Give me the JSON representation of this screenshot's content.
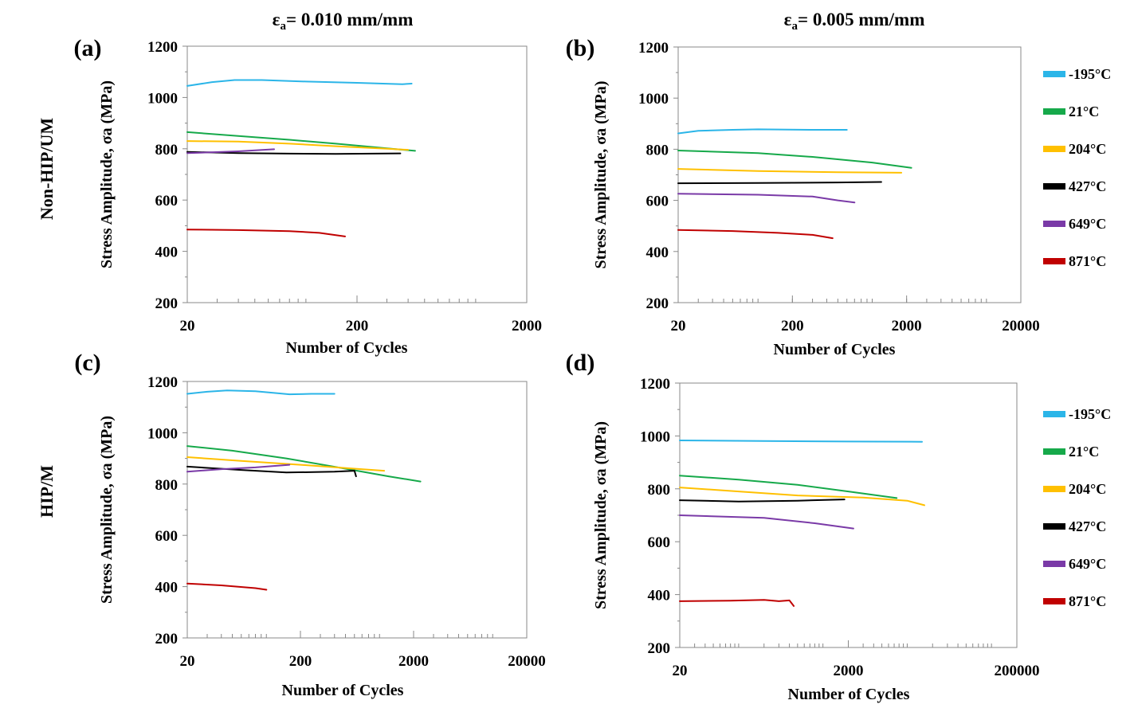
{
  "column_labels": [
    {
      "main": "ε",
      "sub": "a",
      "rest": "= 0.010 mm/mm"
    },
    {
      "main": "ε",
      "sub": "a",
      "rest": "= 0.005 mm/mm"
    }
  ],
  "row_labels": [
    "Non-HIP/UM",
    "HIP/M"
  ],
  "legend_items": [
    {
      "label": "-195°C",
      "color": "#2bb5e8"
    },
    {
      "label": " 21°C",
      "color": "#16a94a"
    },
    {
      "label": "204°C",
      "color": "#ffc000"
    },
    {
      "label": "427°C",
      "color": "#000000"
    },
    {
      "label": "649°C",
      "color": "#7a3aa7"
    },
    {
      "label": "871°C",
      "color": "#c00000"
    }
  ],
  "chart_data": [
    {
      "panel": "(a)",
      "type": "line",
      "xlabel": "Number of Cycles",
      "ylabel": "Stress Amplitude,  σa (MPa)",
      "xscale": "log",
      "xlim": [
        20,
        2000
      ],
      "xticks": [
        20,
        200,
        2000
      ],
      "ylim": [
        200,
        1200
      ],
      "yticks": [
        200,
        400,
        600,
        800,
        1000,
        1200
      ],
      "grid": false,
      "series": [
        {
          "name": "-195°C",
          "color": "#2bb5e8",
          "points": [
            [
              20,
              1045
            ],
            [
              28,
              1060
            ],
            [
              38,
              1068
            ],
            [
              55,
              1068
            ],
            [
              100,
              1062
            ],
            [
              200,
              1057
            ],
            [
              370,
              1052
            ],
            [
              420,
              1054
            ]
          ]
        },
        {
          "name": " 21°C",
          "color": "#16a94a",
          "points": [
            [
              20,
              865
            ],
            [
              40,
              850
            ],
            [
              80,
              835
            ],
            [
              150,
              820
            ],
            [
              300,
              802
            ],
            [
              440,
              792
            ]
          ]
        },
        {
          "name": "204°C",
          "color": "#ffc000",
          "points": [
            [
              20,
              830
            ],
            [
              40,
              828
            ],
            [
              80,
              820
            ],
            [
              150,
              810
            ],
            [
              300,
              800
            ],
            [
              400,
              796
            ]
          ]
        },
        {
          "name": "427°C",
          "color": "#000000",
          "points": [
            [
              20,
              788
            ],
            [
              40,
              783
            ],
            [
              80,
              781
            ],
            [
              150,
              780
            ],
            [
              250,
              781
            ],
            [
              360,
              782
            ]
          ]
        },
        {
          "name": "649°C",
          "color": "#7a3aa7",
          "points": [
            [
              20,
              783
            ],
            [
              40,
              790
            ],
            [
              65,
              798
            ]
          ]
        },
        {
          "name": "871°C",
          "color": "#c00000",
          "points": [
            [
              20,
              485
            ],
            [
              40,
              483
            ],
            [
              80,
              479
            ],
            [
              120,
              472
            ],
            [
              170,
              458
            ]
          ]
        }
      ]
    },
    {
      "panel": "(b)",
      "type": "line",
      "xlabel": "Number of Cycles",
      "ylabel": "Stress Amplitude,  σa (MPa)",
      "xscale": "log",
      "xlim": [
        20,
        20000
      ],
      "xticks": [
        20,
        200,
        2000,
        20000
      ],
      "ylim": [
        200,
        1200
      ],
      "yticks": [
        200,
        400,
        600,
        800,
        1000,
        1200
      ],
      "grid": false,
      "series": [
        {
          "name": "-195°C",
          "color": "#2bb5e8",
          "points": [
            [
              20,
              862
            ],
            [
              30,
              872
            ],
            [
              60,
              876
            ],
            [
              100,
              878
            ],
            [
              300,
              876
            ],
            [
              600,
              876
            ]
          ]
        },
        {
          "name": " 21°C",
          "color": "#16a94a",
          "points": [
            [
              20,
              795
            ],
            [
              100,
              785
            ],
            [
              300,
              770
            ],
            [
              1000,
              748
            ],
            [
              2200,
              727
            ]
          ]
        },
        {
          "name": "204°C",
          "color": "#ffc000",
          "points": [
            [
              20,
              723
            ],
            [
              100,
              715
            ],
            [
              500,
              710
            ],
            [
              1800,
              708
            ]
          ]
        },
        {
          "name": "427°C",
          "color": "#000000",
          "points": [
            [
              20,
              667
            ],
            [
              100,
              668
            ],
            [
              500,
              670
            ],
            [
              1200,
              672
            ]
          ]
        },
        {
          "name": "649°C",
          "color": "#7a3aa7",
          "points": [
            [
              20,
              626
            ],
            [
              100,
              622
            ],
            [
              300,
              615
            ],
            [
              500,
              600
            ],
            [
              700,
              592
            ]
          ]
        },
        {
          "name": "871°C",
          "color": "#c00000",
          "points": [
            [
              20,
              484
            ],
            [
              60,
              480
            ],
            [
              150,
              473
            ],
            [
              300,
              465
            ],
            [
              450,
              452
            ]
          ]
        }
      ]
    },
    {
      "panel": "(c)",
      "type": "line",
      "xlabel": "Number of Cycles",
      "ylabel": "Stress Amplitude,  σa (MPa)",
      "xscale": "log",
      "xlim": [
        20,
        20000
      ],
      "xticks": [
        20,
        200,
        2000,
        20000
      ],
      "ylim": [
        200,
        1200
      ],
      "yticks": [
        200,
        400,
        600,
        800,
        1000,
        1200
      ],
      "grid": false,
      "series": [
        {
          "name": "-195°C",
          "color": "#2bb5e8",
          "points": [
            [
              20,
              1152
            ],
            [
              30,
              1160
            ],
            [
              45,
              1165
            ],
            [
              80,
              1162
            ],
            [
              120,
              1155
            ],
            [
              160,
              1150
            ],
            [
              250,
              1152
            ],
            [
              400,
              1152
            ]
          ]
        },
        {
          "name": " 21°C",
          "color": "#16a94a",
          "points": [
            [
              20,
              948
            ],
            [
              50,
              930
            ],
            [
              150,
              900
            ],
            [
              500,
              860
            ],
            [
              1200,
              830
            ],
            [
              2300,
              810
            ]
          ]
        },
        {
          "name": "204°C",
          "color": "#ffc000",
          "points": [
            [
              20,
              905
            ],
            [
              60,
              890
            ],
            [
              200,
              875
            ],
            [
              600,
              860
            ],
            [
              1100,
              852
            ]
          ]
        },
        {
          "name": "427°C",
          "color": "#000000",
          "points": [
            [
              20,
              868
            ],
            [
              60,
              855
            ],
            [
              150,
              845
            ],
            [
              400,
              848
            ],
            [
              600,
              852
            ],
            [
              620,
              830
            ]
          ]
        },
        {
          "name": "649°C",
          "color": "#7a3aa7",
          "points": [
            [
              20,
              848
            ],
            [
              40,
              858
            ],
            [
              80,
              865
            ],
            [
              160,
              875
            ]
          ]
        },
        {
          "name": "871°C",
          "color": "#c00000",
          "points": [
            [
              20,
              412
            ],
            [
              40,
              405
            ],
            [
              80,
              394
            ],
            [
              100,
              388
            ]
          ]
        }
      ]
    },
    {
      "panel": "(d)",
      "type": "line",
      "xlabel": "Number of Cycles",
      "ylabel": "Stress Amplitude,  σa (MPa)",
      "xscale": "log",
      "xlim": [
        20,
        200000
      ],
      "xticks": [
        20,
        2000,
        200000
      ],
      "ylim": [
        200,
        1200
      ],
      "yticks": [
        200,
        400,
        600,
        800,
        1000,
        1200
      ],
      "grid": false,
      "series": [
        {
          "name": "-195°C",
          "color": "#2bb5e8",
          "points": [
            [
              20,
              983
            ],
            [
              200,
              981
            ],
            [
              2000,
              979
            ],
            [
              15000,
              978
            ]
          ]
        },
        {
          "name": " 21°C",
          "color": "#16a94a",
          "points": [
            [
              20,
              850
            ],
            [
              100,
              835
            ],
            [
              500,
              815
            ],
            [
              2000,
              790
            ],
            [
              7500,
              765
            ]
          ]
        },
        {
          "name": "204°C",
          "color": "#ffc000",
          "points": [
            [
              20,
              805
            ],
            [
              100,
              790
            ],
            [
              500,
              775
            ],
            [
              3000,
              767
            ],
            [
              10000,
              755
            ],
            [
              16000,
              738
            ]
          ]
        },
        {
          "name": "427°C",
          "color": "#000000",
          "points": [
            [
              20,
              757
            ],
            [
              100,
              752
            ],
            [
              500,
              755
            ],
            [
              1800,
              760
            ]
          ]
        },
        {
          "name": "649°C",
          "color": "#7a3aa7",
          "points": [
            [
              20,
              700
            ],
            [
              200,
              690
            ],
            [
              800,
              670
            ],
            [
              2300,
              650
            ]
          ]
        },
        {
          "name": "871°C",
          "color": "#c00000",
          "points": [
            [
              20,
              375
            ],
            [
              80,
              377
            ],
            [
              200,
              380
            ],
            [
              300,
              375
            ],
            [
              400,
              378
            ],
            [
              450,
              357
            ]
          ]
        }
      ]
    }
  ]
}
